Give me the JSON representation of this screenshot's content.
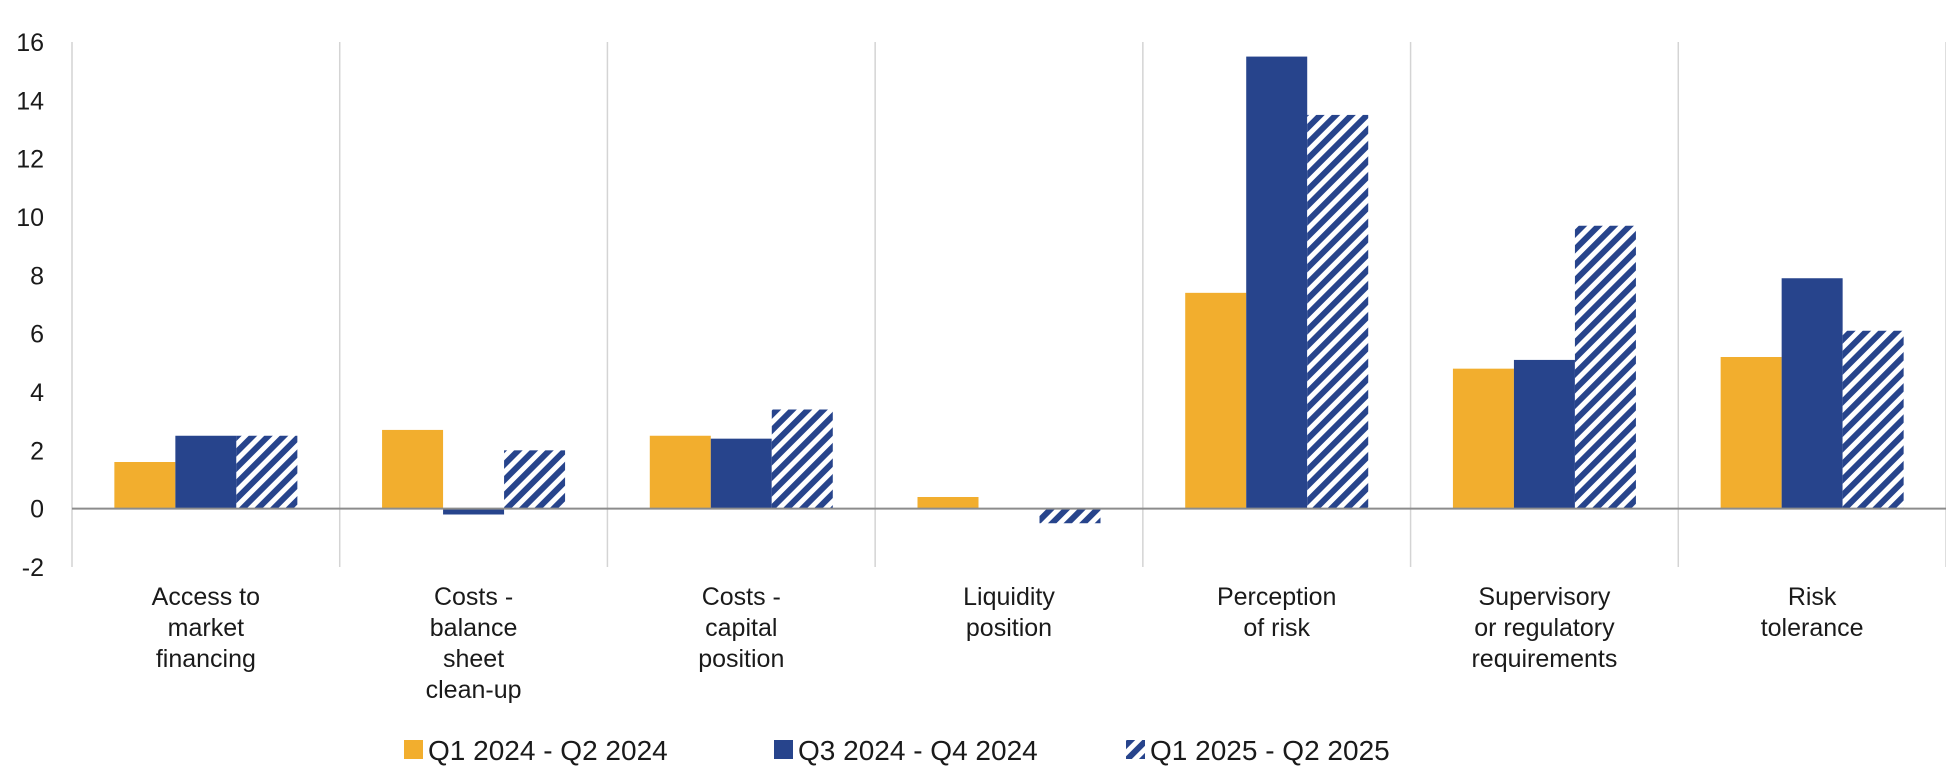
{
  "chart_data": {
    "type": "bar",
    "categories": [
      [
        "Access to",
        "market",
        "financing"
      ],
      [
        "Costs -",
        "balance",
        "sheet",
        "clean-up"
      ],
      [
        "Costs -",
        "capital",
        "position"
      ],
      [
        "Liquidity",
        "position"
      ],
      [
        "Perception",
        "of risk"
      ],
      [
        "Supervisory",
        "or regulatory",
        "requirements"
      ],
      [
        "Risk",
        "tolerance"
      ]
    ],
    "series": [
      {
        "name": "Q1 2024 - Q2 2024",
        "values": [
          1.6,
          2.7,
          2.5,
          0.4,
          7.4,
          4.8,
          5.2
        ],
        "color": "#f2ae2e",
        "pattern": "solid"
      },
      {
        "name": "Q3 2024 - Q4 2024",
        "values": [
          2.5,
          -0.2,
          2.4,
          0.0,
          15.5,
          5.1,
          7.9
        ],
        "color": "#27448c",
        "pattern": "solid"
      },
      {
        "name": "Q1 2025 - Q2 2025",
        "values": [
          2.5,
          2.0,
          3.4,
          -0.5,
          13.5,
          9.7,
          6.1
        ],
        "color": "#27448c",
        "pattern": "hatched"
      }
    ],
    "yticks": [
      -2,
      0,
      2,
      4,
      6,
      8,
      10,
      12,
      14,
      16
    ],
    "ylim": [
      -2,
      16
    ],
    "grid": "vertical separators between categories",
    "legend_position": "bottom"
  }
}
